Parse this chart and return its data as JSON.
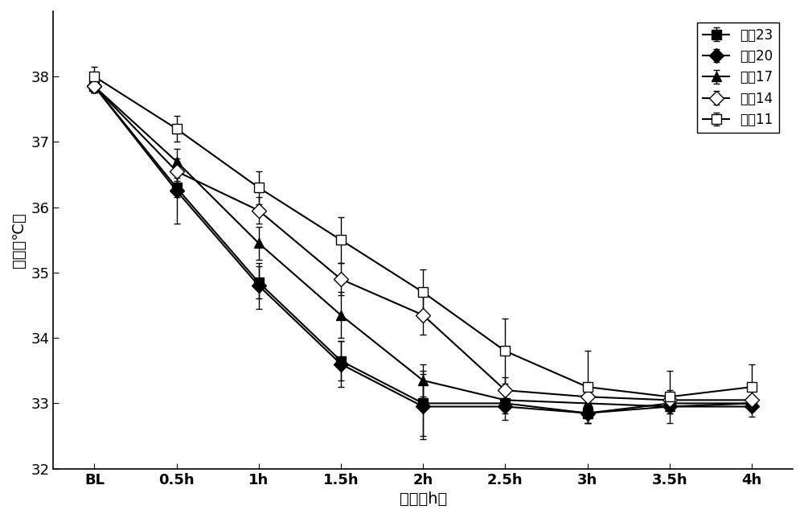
{
  "x_labels": [
    "BL",
    "0.5h",
    "1h",
    "1.5h",
    "2h",
    "2.5h",
    "3h",
    "3.5h",
    "4h"
  ],
  "x_positions": [
    0,
    1,
    2,
    3,
    4,
    5,
    6,
    7,
    8
  ],
  "series": [
    {
      "name": "导管23",
      "marker": "s",
      "filled": true,
      "values": [
        37.85,
        36.3,
        34.85,
        33.65,
        33.0,
        33.0,
        32.85,
        33.0,
        33.0
      ],
      "errors": [
        0.1,
        0.15,
        0.25,
        0.3,
        0.5,
        0.15,
        0.15,
        0.1,
        0.1
      ]
    },
    {
      "name": "导管20",
      "marker": "D",
      "filled": true,
      "values": [
        37.85,
        36.25,
        34.8,
        33.6,
        32.95,
        32.95,
        32.85,
        32.95,
        32.95
      ],
      "errors": [
        0.1,
        0.5,
        0.35,
        0.35,
        0.5,
        0.2,
        0.15,
        0.1,
        0.15
      ]
    },
    {
      "name": "导管17",
      "marker": "^",
      "filled": true,
      "values": [
        37.85,
        36.7,
        35.45,
        34.35,
        33.35,
        33.05,
        33.0,
        32.95,
        33.0
      ],
      "errors": [
        0.1,
        0.2,
        0.25,
        0.35,
        0.25,
        0.15,
        0.15,
        0.1,
        0.1
      ]
    },
    {
      "name": "导管14",
      "marker": "D",
      "filled": false,
      "values": [
        37.85,
        36.55,
        35.95,
        34.9,
        34.35,
        33.2,
        33.1,
        33.05,
        33.05
      ],
      "errors": [
        0.1,
        0.15,
        0.2,
        0.25,
        0.3,
        0.2,
        0.2,
        0.15,
        0.15
      ]
    },
    {
      "name": "导管11",
      "marker": "s",
      "filled": false,
      "values": [
        38.0,
        37.2,
        36.3,
        35.5,
        34.7,
        33.8,
        33.25,
        33.1,
        33.25
      ],
      "errors": [
        0.15,
        0.2,
        0.25,
        0.35,
        0.35,
        0.5,
        0.55,
        0.4,
        0.35
      ]
    }
  ],
  "ylabel": "温度（℃）",
  "xlabel": "时间（h）",
  "ylim": [
    32,
    39
  ],
  "yticks": [
    32,
    33,
    34,
    35,
    36,
    37,
    38
  ],
  "background_color": "#ffffff",
  "label_fontsize": 14,
  "tick_fontsize": 13,
  "legend_fontsize": 12,
  "markersize": 9,
  "linewidth": 1.5
}
